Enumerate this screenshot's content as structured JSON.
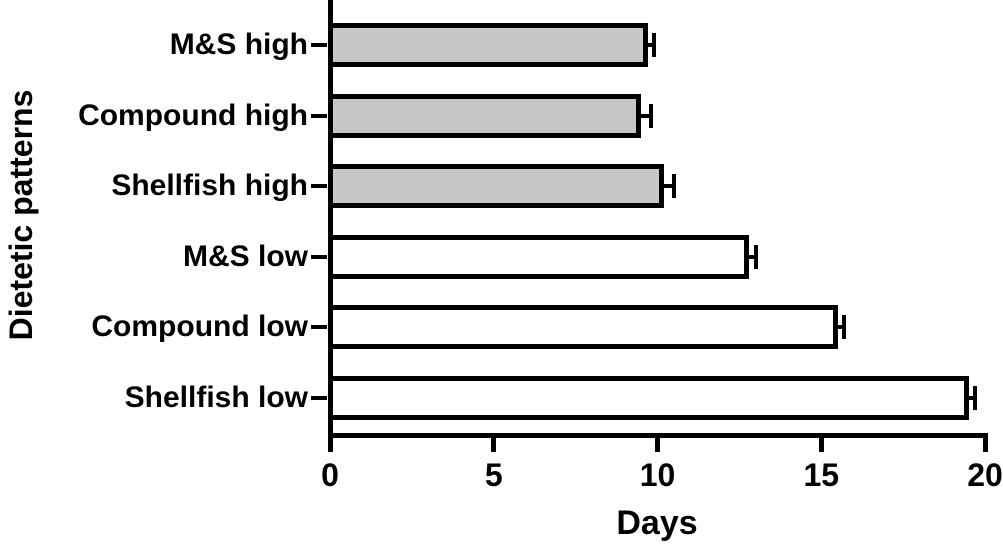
{
  "chart_data": {
    "type": "bar",
    "orientation": "horizontal",
    "title": "",
    "xlabel": "Days",
    "ylabel": "Dietetic patterns",
    "categories": [
      "M&S high",
      "Compound high",
      "Shellfish high",
      "M&S low",
      "Compound low",
      "Shellfish low"
    ],
    "values": [
      9.7,
      9.5,
      10.2,
      12.8,
      15.5,
      19.5
    ],
    "errors": [
      0.2,
      0.3,
      0.3,
      0.2,
      0.2,
      0.2
    ],
    "bar_fills": [
      "#c6c6c6",
      "#c6c6c6",
      "#c6c6c6",
      "#ffffff",
      "#ffffff",
      "#ffffff"
    ],
    "x_ticks": [
      "0",
      "5",
      "10",
      "15",
      "20"
    ],
    "x_tick_values": [
      0,
      5,
      10,
      15,
      20
    ],
    "xlim": [
      0,
      20
    ],
    "bar_border_color": "#000000",
    "axis_color": "#000000",
    "background_color": "#ffffff",
    "grid": false,
    "legend": null,
    "error_bar_side": "positive"
  }
}
